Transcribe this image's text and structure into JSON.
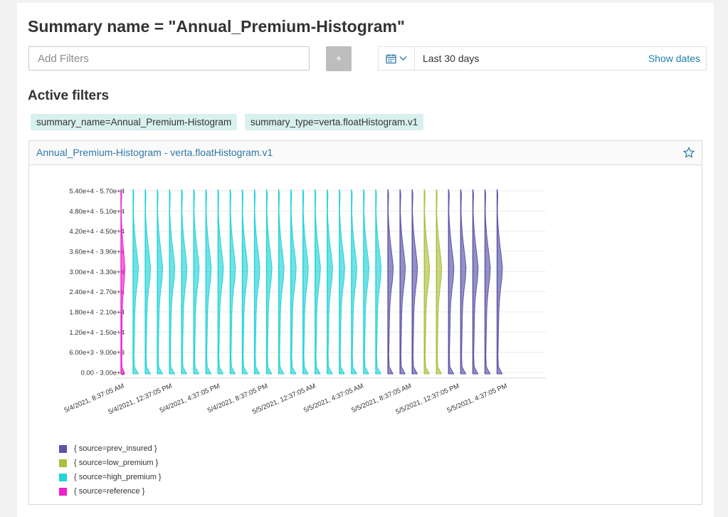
{
  "header": {
    "title": "Summary name = \"Annual_Premium-Histogram\""
  },
  "filters": {
    "placeholder": "Add Filters",
    "add_label": "+"
  },
  "date_picker": {
    "range_label": "Last 30 days",
    "show_dates_label": "Show dates",
    "icon": "calendar-icon"
  },
  "active_filters": {
    "title": "Active filters",
    "tags": [
      "summary_name=Annual_Premium-Histogram",
      "summary_type=verta.floatHistogram.v1"
    ]
  },
  "card": {
    "title": "Annual_Premium-Histogram - verta.floatHistogram.v1",
    "star_icon": "star-icon"
  },
  "colors": {
    "prev_insured": "#5b55a8",
    "low_premium": "#aebd3e",
    "high_premium": "#22d3d8",
    "reference": "#f01fcf"
  },
  "chart_data": {
    "type": "violin",
    "y_categories": [
      "0.00 - 3.00e+3",
      "6.00e+3 - 9.00e+3",
      "1.20e+4 - 1.50e+4",
      "1.80e+4 - 2.10e+4",
      "2.40e+4 - 2.70e+4",
      "3.00e+4 - 3.30e+4",
      "3.60e+4 - 3.90e+4",
      "4.20e+4 - 4.50e+4",
      "4.80e+4 - 5.10e+4",
      "5.40e+4 - 5.70e+4"
    ],
    "x_tick_labels": [
      "5/4/2021, 8:37:05 AM",
      "5/4/2021, 12:37:05 PM",
      "5/4/2021, 4:37:05 PM",
      "5/4/2021, 8:37:05 PM",
      "5/5/2021, 12:37:05 AM",
      "5/5/2021, 4:37:05 AM",
      "5/5/2021, 8:37:05 AM",
      "5/5/2021, 12:37:05 PM",
      "5/5/2021, 4:37:05 PM"
    ],
    "series": [
      {
        "name": "{ source=prev_insured }",
        "color": "#5b55a8"
      },
      {
        "name": "{ source=low_premium }",
        "color": "#aebd3e"
      },
      {
        "name": "{ source=high_premium }",
        "color": "#22d3d8"
      },
      {
        "name": "{ source=reference }",
        "color": "#f01fcf"
      }
    ],
    "violin_sources": [
      "reference",
      "high_premium",
      "high_premium",
      "high_premium",
      "high_premium",
      "high_premium",
      "high_premium",
      "high_premium",
      "high_premium",
      "high_premium",
      "high_premium",
      "high_premium",
      "high_premium",
      "high_premium",
      "high_premium",
      "high_premium",
      "high_premium",
      "high_premium",
      "high_premium",
      "high_premium",
      "high_premium",
      "high_premium",
      "prev_insured",
      "prev_insured",
      "prev_insured",
      "low_premium",
      "low_premium",
      "prev_insured",
      "prev_insured",
      "prev_insured",
      "prev_insured",
      "prev_insured"
    ],
    "grid": true,
    "legend_position": "bottom-left"
  }
}
